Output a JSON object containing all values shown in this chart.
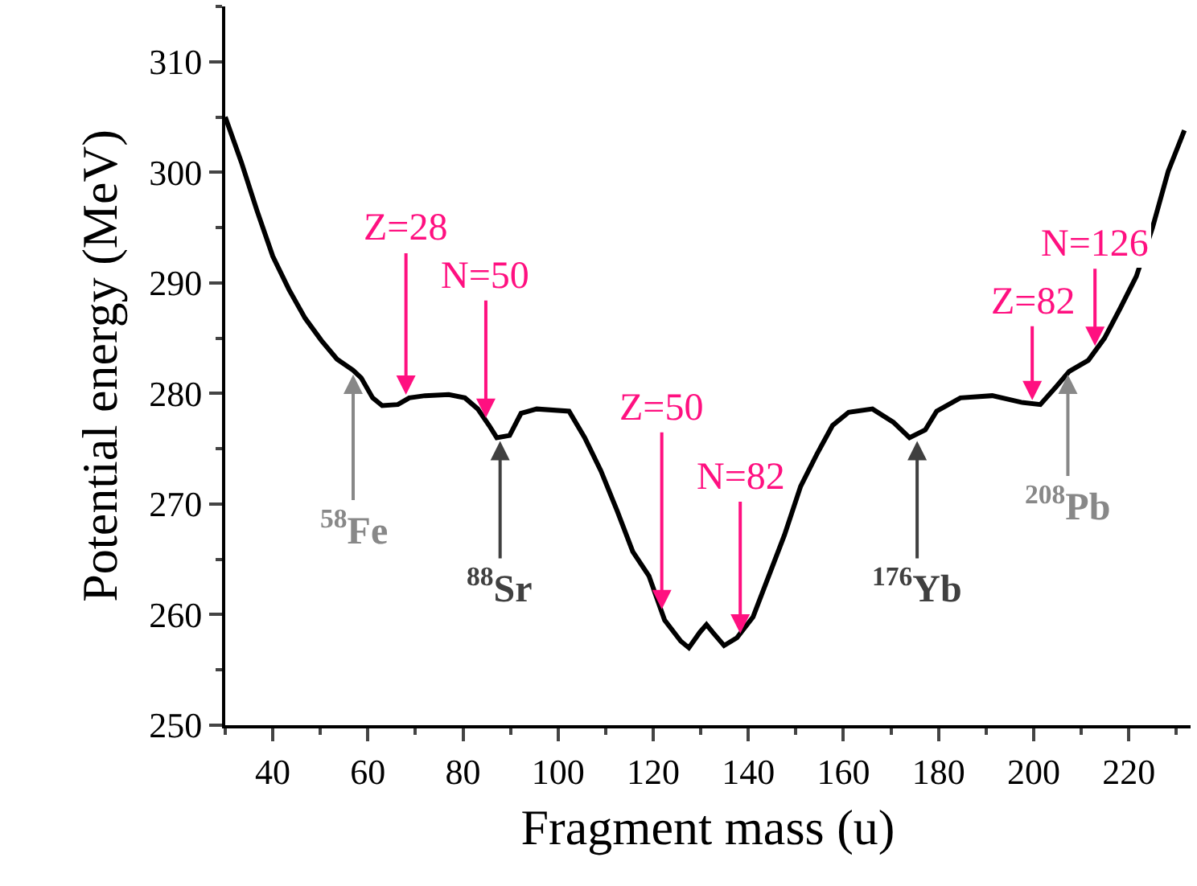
{
  "chart_data": {
    "type": "line",
    "xlabel": "Fragment mass (u)",
    "ylabel": "Potential energy (MeV)",
    "xlim": [
      30,
      233
    ],
    "ylim": [
      250,
      315
    ],
    "xticks": [
      40,
      60,
      80,
      100,
      120,
      140,
      160,
      180,
      200,
      220
    ],
    "yticks": [
      250,
      260,
      270,
      280,
      290,
      300,
      310
    ],
    "marker": "none",
    "line_style": "solid",
    "series": [
      {
        "color": "#000000",
        "x": [
          30,
          33.4,
          36.7,
          40,
          43.4,
          46.8,
          50.2,
          53.5,
          56.9,
          58.6,
          61,
          63,
          66.3,
          68.7,
          72,
          77,
          80.4,
          83.1,
          85.5,
          87.1,
          89.8,
          92.2,
          95.5,
          102.3,
          105.6,
          109,
          112.4,
          115.7,
          119.1,
          122.4,
          125.8,
          127.5,
          129.8,
          131.2,
          132.5,
          134.9,
          137.6,
          141,
          144.3,
          147.6,
          151,
          154.4,
          157.7,
          161.1,
          166.1,
          170.5,
          173.9,
          177.2,
          179.6,
          184.6,
          191.3,
          197.4,
          201.4,
          204.7,
          207.5,
          211.5,
          214.9,
          218.2,
          221.6,
          225,
          228.3,
          231.7
        ],
        "values": [
          305,
          300.9,
          296.5,
          292.4,
          289.4,
          286.8,
          284.8,
          283.1,
          282.1,
          281.4,
          279.6,
          278.9,
          279,
          279.6,
          279.8,
          279.9,
          279.6,
          278.6,
          277.1,
          276,
          276.2,
          278.2,
          278.6,
          278.4,
          276,
          273,
          269.4,
          265.7,
          263.5,
          259.5,
          257.6,
          257,
          258.4,
          259.1,
          258.4,
          257.2,
          257.9,
          259.8,
          263.5,
          267.2,
          271.6,
          274.5,
          277.1,
          278.3,
          278.6,
          277.4,
          276,
          276.7,
          278.4,
          279.6,
          279.8,
          279.2,
          279,
          280.6,
          282,
          283,
          285,
          287.7,
          290.6,
          295,
          300.1,
          303.8
        ]
      }
    ],
    "annotations": [
      {
        "text": "Z=28",
        "x": 68,
        "y": 279.6
      },
      {
        "text": "N=50",
        "x": 84.8,
        "y": 277.5
      },
      {
        "text": "Z=50",
        "x": 121.8,
        "y": 260.2
      },
      {
        "text": "N=82",
        "x": 138.3,
        "y": 258
      },
      {
        "text": "Z=82",
        "x": 199.7,
        "y": 279.1
      },
      {
        "text": "N=126",
        "x": 212.9,
        "y": 284
      },
      {
        "text": "$^{58}$Fe",
        "x": 56.9,
        "y": 282
      },
      {
        "text": "$^{88}$Sr",
        "x": 87.8,
        "y": 276
      },
      {
        "text": "$^{176}$Yb",
        "x": 175.5,
        "y": 276
      },
      {
        "text": "$^{208}$Pb",
        "x": 207.2,
        "y": 282
      }
    ]
  }
}
